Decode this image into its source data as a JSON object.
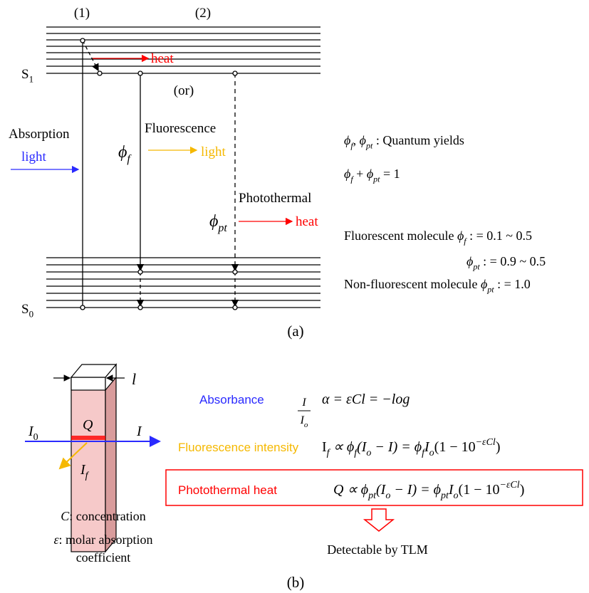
{
  "panel_a": {
    "columns": [
      "(1)",
      "(2)"
    ],
    "s1": [
      {
        "text": "S"
      },
      {
        "text": "1",
        "sub": true
      }
    ],
    "s0": [
      {
        "text": "S"
      },
      {
        "text": "0",
        "sub": true
      }
    ],
    "relax_heat": "heat",
    "or": "(or)",
    "absorption": "Absorption",
    "absorption_light": "light",
    "fluorescence": "Fluorescence",
    "phi_f": [
      {
        "text": "ϕ",
        "italic": true
      },
      {
        "text": "f",
        "sub": true,
        "italic": true
      }
    ],
    "fluorescence_light": "light",
    "photothermal": "Photothermal",
    "phi_pt": [
      {
        "text": "ϕ",
        "italic": true
      },
      {
        "text": "pt",
        "sub": true,
        "italic": true
      }
    ],
    "photothermal_heat": "heat",
    "notes": [
      [
        {
          "text": "ϕ",
          "italic": true
        },
        {
          "text": "f",
          "sub": true,
          "italic": true
        },
        {
          "text": ", "
        },
        {
          "text": "ϕ",
          "italic": true
        },
        {
          "text": "pt",
          "sub": true,
          "italic": true
        },
        {
          "text": " : Quantum yields"
        }
      ],
      [
        {
          "text": "ϕ",
          "italic": true
        },
        {
          "text": "f",
          "sub": true,
          "italic": true
        },
        {
          "text": " + "
        },
        {
          "text": "ϕ",
          "italic": true
        },
        {
          "text": "pt",
          "sub": true,
          "italic": true
        },
        {
          "text": " = 1"
        }
      ],
      [
        {
          "text": "Fluorescent molecule   "
        },
        {
          "text": "ϕ",
          "italic": true
        },
        {
          "text": "f",
          "sub": true,
          "italic": true
        },
        {
          "text": "  : = 0.1 ~ 0.5"
        }
      ],
      [
        {
          "text": "ϕ",
          "italic": true
        },
        {
          "text": "pt",
          "sub": true,
          "italic": true
        },
        {
          "text": " : = 0.9 ~ 0.5"
        }
      ],
      [
        {
          "text": "Non-fluorescent molecule   "
        },
        {
          "text": "ϕ",
          "italic": true
        },
        {
          "text": "pt",
          "sub": true,
          "italic": true
        },
        {
          "text": " : = 1.0"
        }
      ]
    ],
    "label": "(a)"
  },
  "panel_b": {
    "width_label": "l",
    "incident": [
      {
        "text": "I",
        "italic": true
      },
      {
        "text": "0",
        "sub": true
      }
    ],
    "heat_symbol": "Q",
    "transmitted": "I",
    "fluorescence_symbol": [
      {
        "text": "I",
        "italic": true
      },
      {
        "text": "f",
        "sub": true,
        "italic": true
      }
    ],
    "legend": [
      [
        {
          "text": "C",
          "italic": true
        },
        {
          "text": ": concentration"
        }
      ],
      [
        {
          "text": "ε",
          "italic": true
        },
        {
          "text": ": molar absorption"
        }
      ],
      [
        {
          "text": "coefficient"
        }
      ]
    ],
    "absorbance": {
      "name": "Absorbance",
      "equation": [
        {
          "text": "α = εCl = −log",
          "italic": true
        }
      ],
      "numerator": "I",
      "denominator": [
        {
          "text": "I",
          "italic": true
        },
        {
          "text": "o",
          "sub": true,
          "italic": true
        }
      ]
    },
    "fluorescence": {
      "name": "Fluorescence intensity",
      "equation": [
        {
          "text": "I"
        },
        {
          "text": "f",
          "sub": true,
          "italic": true
        },
        {
          "text": " ∝ ϕ",
          "italic": true
        },
        {
          "text": "f",
          "sub": true,
          "italic": true
        },
        {
          "text": "(I",
          "italic": true
        },
        {
          "text": "o",
          "sub": true,
          "italic": true
        },
        {
          "text": " − I) = ϕ",
          "italic": true
        },
        {
          "text": "f",
          "sub": true,
          "italic": true
        },
        {
          "text": "I",
          "italic": true
        },
        {
          "text": "o",
          "sub": true,
          "italic": true
        },
        {
          "text": "(1 − 10"
        },
        {
          "text": "−εCl",
          "sup": true,
          "italic": true
        },
        {
          "text": ")"
        }
      ]
    },
    "photothermal": {
      "name": "Photothermal heat",
      "equation": [
        {
          "text": "Q ∝ ϕ",
          "italic": true
        },
        {
          "text": "pt",
          "sub": true,
          "italic": true
        },
        {
          "text": "(I",
          "italic": true
        },
        {
          "text": "o",
          "sub": true,
          "italic": true
        },
        {
          "text": " − I) = ϕ",
          "italic": true
        },
        {
          "text": "pt",
          "sub": true,
          "italic": true
        },
        {
          "text": "I",
          "italic": true
        },
        {
          "text": "o",
          "sub": true,
          "italic": true
        },
        {
          "text": "(1 − 10"
        },
        {
          "text": "−εCl",
          "sup": true,
          "italic": true
        },
        {
          "text": ")"
        }
      ]
    },
    "conclusion": "Detectable by TLM",
    "label": "(b)"
  }
}
